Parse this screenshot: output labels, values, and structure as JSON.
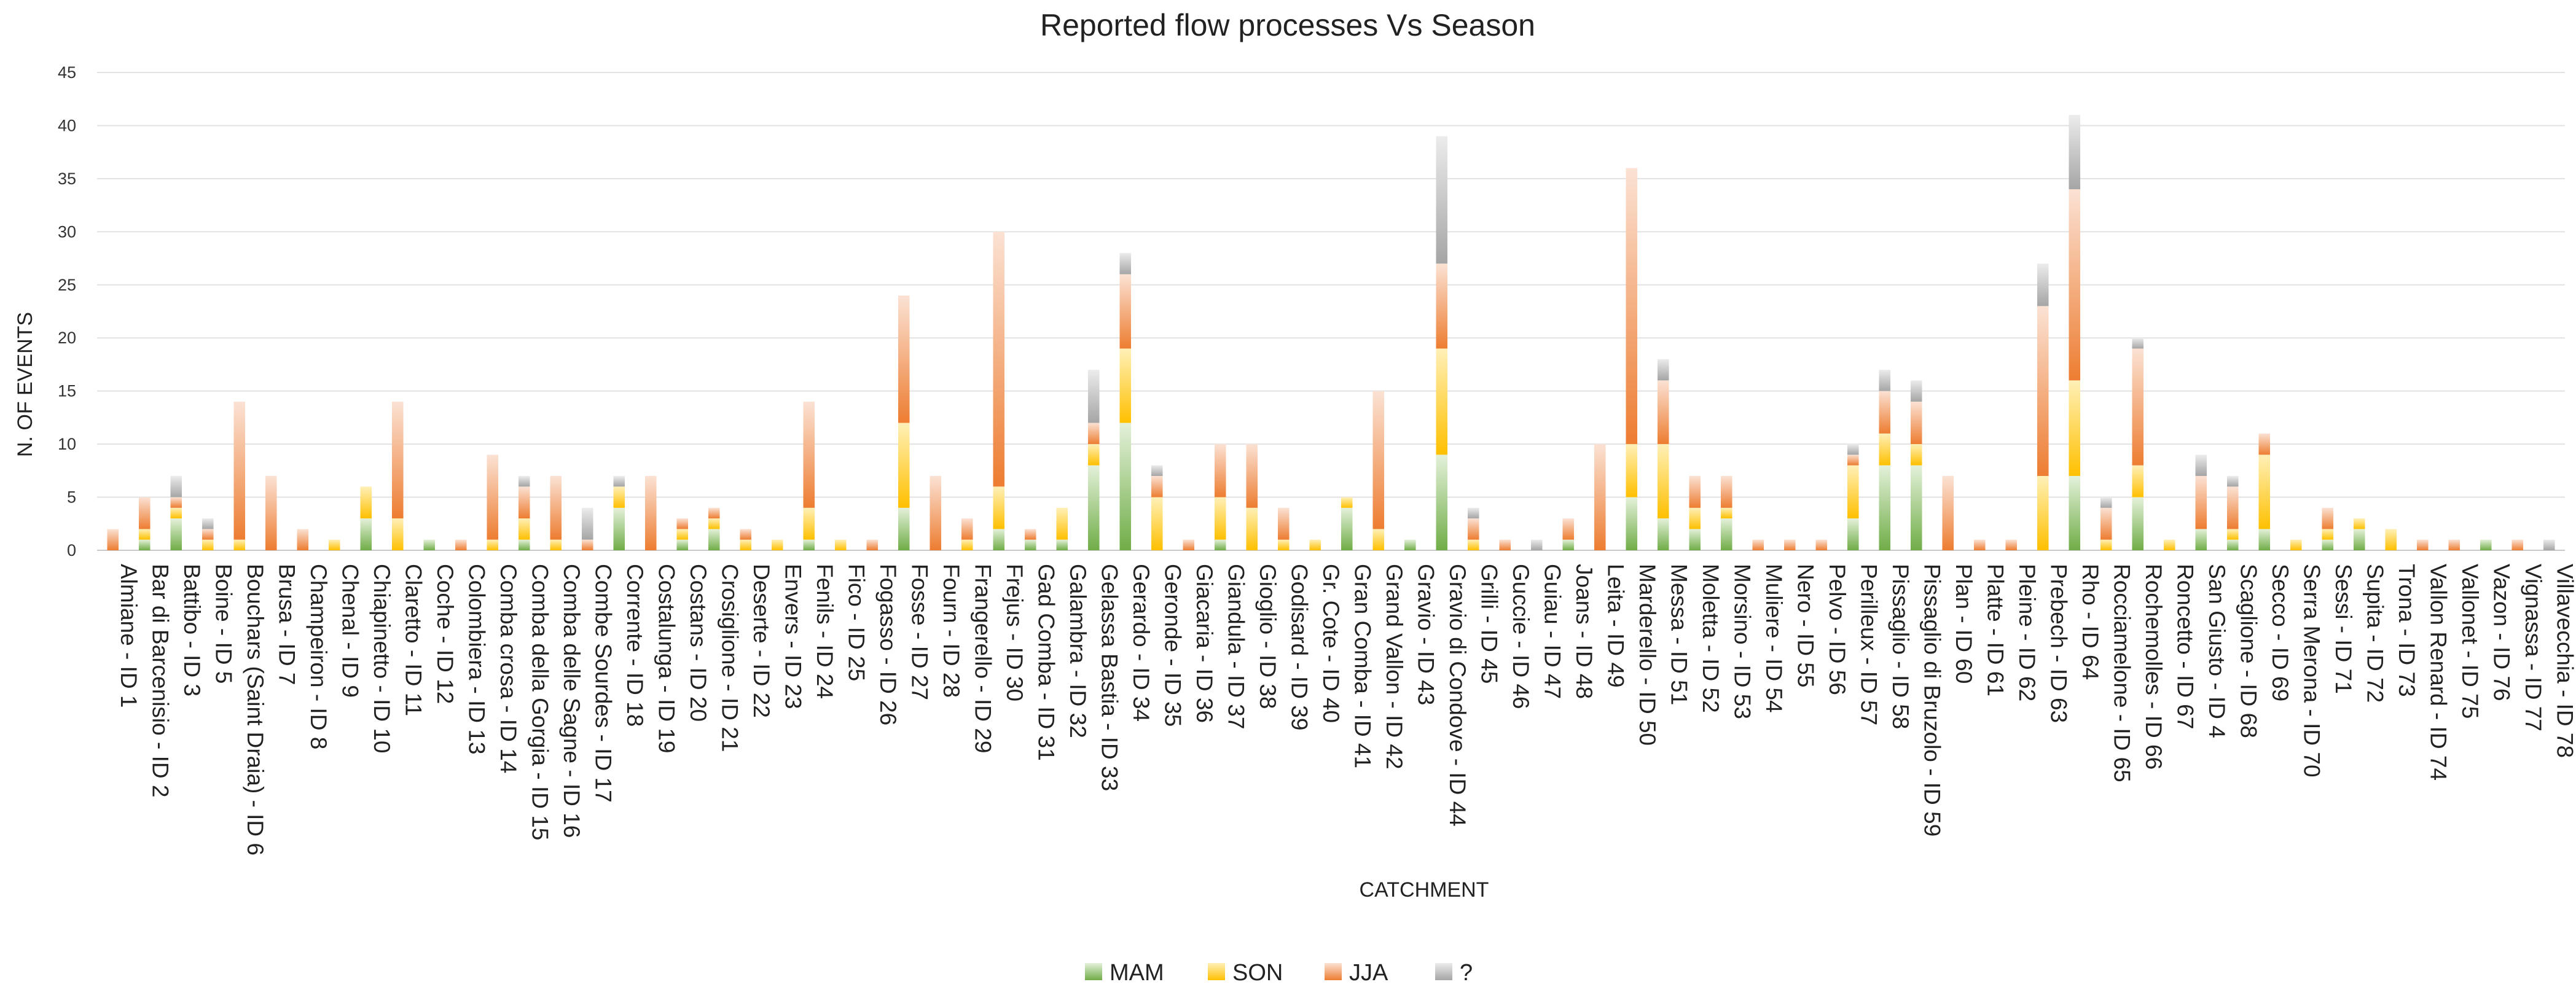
{
  "chart_data": {
    "type": "bar",
    "stacked": true,
    "title": "Reported flow processes Vs Season",
    "xlabel": "CATCHMENT",
    "ylabel": "N. OF EVENTS",
    "ylim": [
      0,
      45
    ],
    "yticks": [
      0,
      5,
      10,
      15,
      20,
      25,
      30,
      35,
      40,
      45
    ],
    "grid": true,
    "legend_position": "bottom-center",
    "categories": [
      "Almiane - ID 1",
      "Bar di Barcenisio - ID 2",
      "Battibo - ID 3",
      "Boine - ID 5",
      "Bouchars (Saint Draia) - ID 6",
      "Brusa - ID 7",
      "Champeiron - ID 8",
      "Chenal - ID 9",
      "Chiapinetto - ID 10",
      "Claretto - ID 11",
      "Coche - ID 12",
      "Colombiera - ID 13",
      "Comba crosa - ID 14",
      "Comba della Gorgia - ID 15",
      "Comba delle Sagne - ID 16",
      "Combe Sourdes - ID 17",
      "Corrente - ID 18",
      "Costalunga - ID 19",
      "Costans - ID 20",
      "Crosiglione - ID 21",
      "Deserte - ID 22",
      "Envers - ID 23",
      "Fenils - ID 24",
      "Fico - ID 25",
      "Fogasso - ID 26",
      "Fosse - ID 27",
      "Fourn - ID 28",
      "Frangerello - ID 29",
      "Frejus - ID 30",
      "Gad Comba - ID 31",
      "Galambra - ID 32",
      "Gelassa Bastia - ID 33",
      "Gerardo - ID 34",
      "Geronde - ID 35",
      "Giacaria - ID 36",
      "Giandula - ID 37",
      "Gioglio - ID 38",
      "Godisard - ID 39",
      "Gr. Cote - ID 40",
      "Gran Comba - ID 41",
      "Grand Vallon - ID 42",
      "Gravio - ID 43",
      "Gravio di Condove - ID 44",
      "Grilli - ID 45",
      "Guccie - ID 46",
      "Guiau - ID 47",
      "Joans - ID 48",
      "Leita - ID 49",
      "Marderello - ID 50",
      "Messa - ID 51",
      "Moletta - ID 52",
      "Morsino - ID 53",
      "Muliere - ID 54",
      "Nero - ID 55",
      "Pelvo - ID 56",
      "Perilleux - ID 57",
      "Pissaglio - ID 58",
      "Pissaglio di Bruzolo - ID 59",
      "Plan - ID 60",
      "Platte - ID 61",
      "Pleine - ID 62",
      "Prebech - ID 63",
      "Rho - ID 64",
      "Rocciamelone - ID 65",
      "Rochemolles - ID 66",
      "Roncetto - ID 67",
      "San Giusto - ID 4",
      "Scaglione - ID 68",
      "Secco - ID 69",
      "Serra Merona - ID 70",
      "Sessi - ID 71",
      "Supita - ID 72",
      "Trona - ID 73",
      "Vallon Renard - ID 74",
      "Vallonet - ID 75",
      "Vazon - ID 76",
      "Vignassa - ID 77",
      "Villavecchia - ID 78"
    ],
    "series": [
      {
        "name": "MAM",
        "color": "#70ad47",
        "values": [
          0,
          1,
          3,
          0,
          0,
          0,
          0,
          0,
          3,
          0,
          1,
          0,
          0,
          1,
          0,
          0,
          4,
          0,
          1,
          2,
          0,
          0,
          1,
          0,
          0,
          4,
          0,
          0,
          2,
          1,
          1,
          8,
          12,
          0,
          0,
          1,
          0,
          0,
          0,
          4,
          0,
          1,
          9,
          0,
          0,
          0,
          1,
          0,
          5,
          3,
          2,
          3,
          0,
          0,
          0,
          3,
          8,
          8,
          0,
          0,
          0,
          0,
          7,
          0,
          5,
          0,
          2,
          1,
          2,
          0,
          1,
          2,
          0,
          0,
          0,
          1,
          0,
          0
        ]
      },
      {
        "name": "SON",
        "color": "#ffc000",
        "values": [
          0,
          1,
          1,
          1,
          1,
          0,
          0,
          1,
          3,
          3,
          0,
          0,
          1,
          2,
          1,
          0,
          2,
          0,
          1,
          1,
          1,
          1,
          3,
          1,
          0,
          8,
          0,
          1,
          4,
          0,
          3,
          2,
          7,
          5,
          0,
          4,
          4,
          1,
          1,
          1,
          2,
          0,
          10,
          1,
          0,
          0,
          0,
          0,
          5,
          7,
          2,
          1,
          0,
          0,
          0,
          5,
          3,
          2,
          0,
          0,
          0,
          7,
          9,
          1,
          3,
          1,
          0,
          1,
          7,
          1,
          1,
          1,
          2,
          0,
          0,
          0,
          0,
          0
        ]
      },
      {
        "name": "JJA",
        "color": "#ed7d31",
        "values": [
          2,
          3,
          1,
          1,
          13,
          7,
          2,
          0,
          0,
          11,
          0,
          1,
          8,
          3,
          6,
          1,
          0,
          7,
          1,
          1,
          1,
          0,
          10,
          0,
          1,
          12,
          7,
          2,
          24,
          1,
          0,
          2,
          7,
          2,
          1,
          5,
          6,
          3,
          0,
          0,
          13,
          0,
          8,
          2,
          1,
          0,
          2,
          10,
          26,
          6,
          3,
          3,
          1,
          1,
          1,
          1,
          4,
          4,
          7,
          1,
          1,
          16,
          18,
          3,
          11,
          0,
          5,
          4,
          2,
          0,
          2,
          0,
          0,
          1,
          1,
          0,
          1,
          0
        ]
      },
      {
        "name": "?",
        "color": "#a5a5a5",
        "values": [
          0,
          0,
          2,
          1,
          0,
          0,
          0,
          0,
          0,
          0,
          0,
          0,
          0,
          1,
          0,
          3,
          1,
          0,
          0,
          0,
          0,
          0,
          0,
          0,
          0,
          0,
          0,
          0,
          0,
          0,
          0,
          5,
          2,
          1,
          0,
          0,
          0,
          0,
          0,
          0,
          0,
          0,
          12,
          1,
          0,
          1,
          0,
          0,
          0,
          2,
          0,
          0,
          0,
          0,
          0,
          1,
          2,
          2,
          0,
          0,
          0,
          4,
          7,
          1,
          1,
          0,
          2,
          1,
          0,
          0,
          0,
          0,
          0,
          0,
          0,
          0,
          0,
          1
        ]
      }
    ]
  }
}
